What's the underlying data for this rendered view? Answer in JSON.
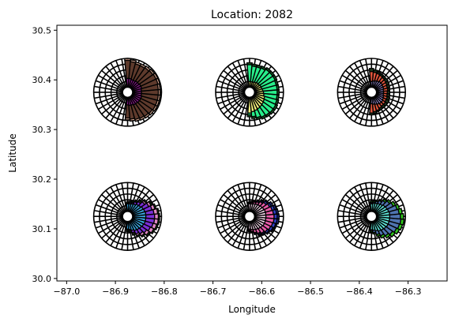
{
  "chart_data": {
    "type": "polar-bar-map",
    "title": "Location: 2082",
    "xlabel": "Longitude",
    "ylabel": "Latitude",
    "xlim": [
      -87.02,
      -86.22
    ],
    "ylim": [
      29.995,
      30.51
    ],
    "xticks": [
      -87.0,
      -86.9,
      -86.8,
      -86.7,
      -86.6,
      -86.5,
      -86.4,
      -86.3
    ],
    "xtick_labels": [
      "−87.0",
      "−86.9",
      "−86.8",
      "−86.7",
      "−86.6",
      "−86.5",
      "−86.4",
      "−86.3"
    ],
    "yticks": [
      30.0,
      30.1,
      30.2,
      30.3,
      30.4,
      30.5
    ],
    "ytick_labels": [
      "30.0",
      "30.1",
      "30.2",
      "30.3",
      "30.4",
      "30.5"
    ],
    "grid": false,
    "polar_rings": 5,
    "polar_sectors": 36,
    "inset_radius_deg": 0.088,
    "glyphs": [
      {
        "center": [
          -86.875,
          30.375
        ],
        "directions_deg": [
          -90,
          -80,
          -70,
          -60,
          -50,
          -40,
          -30,
          -20,
          -10,
          0,
          10,
          20,
          30,
          40,
          50,
          60,
          70,
          80,
          90
        ],
        "layers": [
          {
            "color": "#e8b49c",
            "values": [
              3.6,
              3.8,
              4.0,
              4.1,
              4.2,
              4.3,
              4.4,
              4.4,
              4.4,
              4.4,
              4.4,
              4.5,
              4.5,
              4.4,
              4.3,
              4.2,
              4.2,
              4.4,
              4.6
            ]
          },
          {
            "color": "#5e3a2c",
            "values": [
              3.3,
              3.5,
              3.7,
              3.8,
              3.9,
              4.0,
              4.1,
              4.1,
              4.1,
              4.1,
              4.1,
              4.2,
              4.2,
              4.1,
              4.0,
              3.9,
              3.9,
              4.1,
              4.3
            ]
          },
          {
            "color": "#8b1a8f",
            "values": [
              1.2,
              1.3,
              1.3,
              1.4,
              1.4,
              1.5,
              1.5,
              1.5,
              1.4,
              1.4,
              1.4,
              1.5,
              1.5,
              1.4,
              1.4,
              1.3,
              1.3,
              1.4,
              1.4
            ]
          }
        ]
      },
      {
        "center": [
          -86.625,
          30.375
        ],
        "directions_deg": [
          -90,
          -80,
          -70,
          -60,
          -50,
          -40,
          -30,
          -20,
          -10,
          0,
          10,
          20,
          30,
          40,
          50,
          60,
          70,
          80,
          90
        ],
        "layers": [
          {
            "color": "#1b6b2a",
            "values": [
              3.1,
              3.4,
              3.7,
              3.9,
              4.0,
              4.1,
              4.1,
              4.0,
              3.9,
              3.9,
              3.9,
              3.9,
              4.0,
              4.0,
              4.0,
              3.8,
              3.7,
              3.7,
              3.9
            ]
          },
          {
            "color": "#27ee8a",
            "values": [
              2.8,
              3.1,
              3.4,
              3.6,
              3.7,
              3.8,
              3.8,
              3.7,
              3.6,
              3.6,
              3.6,
              3.6,
              3.7,
              3.7,
              3.7,
              3.5,
              3.4,
              3.4,
              3.6
            ]
          },
          {
            "color": "#f2f07a",
            "values": [
              2.5,
              2.3,
              2.2,
              2.1,
              2.0,
              1.9,
              1.8,
              1.7,
              1.5,
              1.4,
              1.3,
              1.2,
              1.2,
              1.1,
              1.1,
              1.0,
              0.9,
              0.9,
              0.9
            ]
          }
        ]
      },
      {
        "center": [
          -86.375,
          30.375
        ],
        "directions_deg": [
          -90,
          -80,
          -70,
          -60,
          -50,
          -40,
          -30,
          -20,
          -10,
          0,
          10,
          20,
          30,
          40,
          50,
          60,
          70,
          80,
          90
        ],
        "layers": [
          {
            "color": "#1d3a1d",
            "values": [
              2.8,
              2.6,
              2.4,
              2.3,
              2.3,
              2.3,
              2.3,
              2.2,
              2.1,
              2.1,
              2.1,
              2.2,
              2.3,
              2.4,
              2.4,
              2.5,
              2.6,
              2.8,
              3.0
            ]
          },
          {
            "color": "#e2563c",
            "values": [
              2.5,
              2.3,
              2.2,
              2.0,
              1.9,
              1.9,
              1.8,
              1.8,
              1.7,
              1.7,
              1.8,
              1.8,
              1.9,
              2.0,
              2.1,
              2.2,
              2.3,
              2.4,
              2.5
            ]
          },
          {
            "color": "#9b90d8",
            "values": [
              1.0,
              1.1,
              1.2,
              1.3,
              1.4,
              1.4,
              1.3,
              1.2,
              1.1,
              1.1,
              1.1,
              1.2,
              1.2,
              1.3,
              1.3,
              1.2,
              1.1,
              1.0,
              0.9
            ]
          }
        ]
      },
      {
        "center": [
          -86.875,
          30.125
        ],
        "directions_deg": [
          -90,
          -80,
          -70,
          -60,
          -50,
          -40,
          -30,
          -20,
          -10,
          0,
          10,
          20,
          30,
          40,
          50,
          60,
          70,
          80,
          90
        ],
        "layers": [
          {
            "color": "#35b51a",
            "values": [
              1.6,
              1.8,
              2.3,
              2.8,
              3.2,
              3.6,
              4.0,
              4.2,
              4.3,
              4.3,
              4.2,
              3.9,
              3.5,
              3.0,
              2.5,
              2.1,
              1.8,
              1.6,
              1.5
            ]
          },
          {
            "color": "#e089c4",
            "values": [
              1.4,
              1.6,
              2.1,
              2.6,
              3.0,
              3.4,
              3.8,
              4.0,
              4.1,
              4.1,
              4.0,
              3.7,
              3.3,
              2.8,
              2.3,
              1.9,
              1.6,
              1.4,
              1.3
            ]
          },
          {
            "color": "#7a2ed6",
            "values": [
              1.3,
              1.5,
              1.9,
              2.3,
              2.6,
              2.9,
              3.2,
              3.4,
              3.5,
              3.5,
              3.4,
              3.2,
              2.9,
              2.5,
              2.1,
              1.8,
              1.5,
              1.4,
              1.3
            ]
          },
          {
            "color": "#3aa8e0",
            "values": [
              1.2,
              1.3,
              1.5,
              1.7,
              1.8,
              1.9,
              2.0,
              2.1,
              2.1,
              2.1,
              2.1,
              2.0,
              1.9,
              1.7,
              1.6,
              1.4,
              1.3,
              1.2,
              1.2
            ]
          }
        ]
      },
      {
        "center": [
          -86.625,
          30.125
        ],
        "directions_deg": [
          -90,
          -80,
          -70,
          -60,
          -50,
          -40,
          -30,
          -20,
          -10,
          0,
          10,
          20,
          30,
          40,
          50,
          60,
          70,
          80,
          90
        ],
        "layers": [
          {
            "color": "#1d2a8a",
            "values": [
              1.6,
              1.8,
              2.2,
              2.6,
              2.9,
              3.2,
              3.5,
              3.7,
              3.9,
              3.9,
              3.8,
              3.6,
              3.3,
              2.9,
              2.5,
              2.1,
              1.8,
              1.6,
              1.5
            ]
          },
          {
            "color": "#2f3fc8",
            "values": [
              1.5,
              1.7,
              2.0,
              2.4,
              2.7,
              3.0,
              3.3,
              3.5,
              3.6,
              3.6,
              3.5,
              3.3,
              3.0,
              2.7,
              2.3,
              2.0,
              1.7,
              1.5,
              1.4
            ]
          },
          {
            "color": "#e85aa8",
            "values": [
              1.4,
              1.6,
              1.9,
              2.2,
              2.5,
              2.7,
              2.9,
              3.0,
              3.1,
              3.1,
              3.0,
              2.9,
              2.7,
              2.4,
              2.1,
              1.8,
              1.6,
              1.4,
              1.3
            ]
          },
          {
            "color": "#f2d6e8",
            "values": [
              1.2,
              1.3,
              1.4,
              1.5,
              1.6,
              1.7,
              1.8,
              1.8,
              1.8,
              1.8,
              1.8,
              1.8,
              1.7,
              1.6,
              1.5,
              1.4,
              1.3,
              1.2,
              1.2
            ]
          }
        ]
      },
      {
        "center": [
          -86.375,
          30.125
        ],
        "directions_deg": [
          -90,
          -80,
          -70,
          -60,
          -50,
          -40,
          -30,
          -20,
          -10,
          0,
          10,
          20,
          30,
          40,
          50,
          60,
          70,
          80,
          90
        ],
        "layers": [
          {
            "color": "#2ec81a",
            "values": [
              1.7,
              2.0,
              2.5,
              3.0,
              3.4,
              3.8,
              4.1,
              4.3,
              4.4,
              4.3,
              4.1,
              3.8,
              3.4,
              3.0,
              2.6,
              2.2,
              1.9,
              1.7,
              1.6
            ]
          },
          {
            "color": "#4f74b0",
            "values": [
              1.5,
              1.8,
              2.2,
              2.6,
              3.0,
              3.3,
              3.6,
              3.8,
              3.9,
              3.8,
              3.6,
              3.4,
              3.0,
              2.7,
              2.3,
              2.0,
              1.7,
              1.5,
              1.4
            ]
          },
          {
            "color": "#5fe6d8",
            "values": [
              1.3,
              1.4,
              1.6,
              1.8,
              1.9,
              2.0,
              2.1,
              2.1,
              2.1,
              2.1,
              2.1,
              2.0,
              1.9,
              1.8,
              1.6,
              1.5,
              1.4,
              1.3,
              1.2
            ]
          }
        ]
      }
    ]
  }
}
